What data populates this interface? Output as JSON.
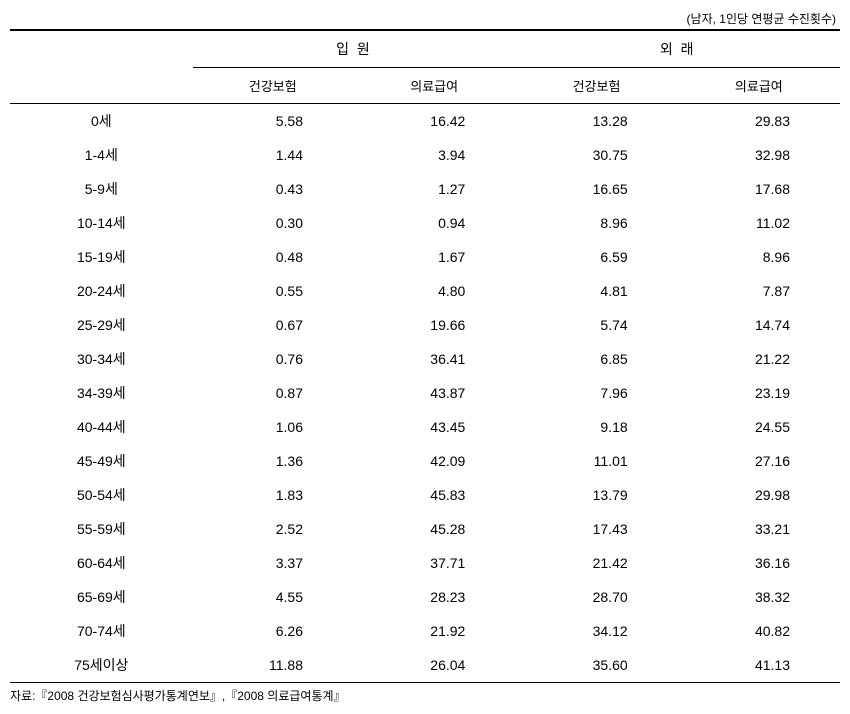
{
  "unit_note": "(남자, 1인당 연평균 수진횟수)",
  "header": {
    "group1": "입 원",
    "group2": "외 래",
    "sub1": "건강보험",
    "sub2": "의료급여",
    "sub3": "건강보험",
    "sub4": "의료급여"
  },
  "columns_count": 4,
  "rows": [
    {
      "label": "0세",
      "v": [
        "5.58",
        "16.42",
        "13.28",
        "29.83"
      ]
    },
    {
      "label": "1-4세",
      "v": [
        "1.44",
        "3.94",
        "30.75",
        "32.98"
      ]
    },
    {
      "label": "5-9세",
      "v": [
        "0.43",
        "1.27",
        "16.65",
        "17.68"
      ]
    },
    {
      "label": "10-14세",
      "v": [
        "0.30",
        "0.94",
        "8.96",
        "11.02"
      ]
    },
    {
      "label": "15-19세",
      "v": [
        "0.48",
        "1.67",
        "6.59",
        "8.96"
      ]
    },
    {
      "label": "20-24세",
      "v": [
        "0.55",
        "4.80",
        "4.81",
        "7.87"
      ]
    },
    {
      "label": "25-29세",
      "v": [
        "0.67",
        "19.66",
        "5.74",
        "14.74"
      ]
    },
    {
      "label": "30-34세",
      "v": [
        "0.76",
        "36.41",
        "6.85",
        "21.22"
      ]
    },
    {
      "label": "34-39세",
      "v": [
        "0.87",
        "43.87",
        "7.96",
        "23.19"
      ]
    },
    {
      "label": "40-44세",
      "v": [
        "1.06",
        "43.45",
        "9.18",
        "24.55"
      ]
    },
    {
      "label": "45-49세",
      "v": [
        "1.36",
        "42.09",
        "11.01",
        "27.16"
      ]
    },
    {
      "label": "50-54세",
      "v": [
        "1.83",
        "45.83",
        "13.79",
        "29.98"
      ]
    },
    {
      "label": "55-59세",
      "v": [
        "2.52",
        "45.28",
        "17.43",
        "33.21"
      ]
    },
    {
      "label": "60-64세",
      "v": [
        "3.37",
        "37.71",
        "21.42",
        "36.16"
      ]
    },
    {
      "label": "65-69세",
      "v": [
        "4.55",
        "28.23",
        "28.70",
        "38.32"
      ]
    },
    {
      "label": "70-74세",
      "v": [
        "6.26",
        "21.92",
        "34.12",
        "40.82"
      ]
    },
    {
      "label": "75세이상",
      "v": [
        "11.88",
        "26.04",
        "35.60",
        "41.13"
      ]
    }
  ],
  "source": "자료:『2008 건강보험심사평가통계연보』,『2008 의료급여통계』"
}
